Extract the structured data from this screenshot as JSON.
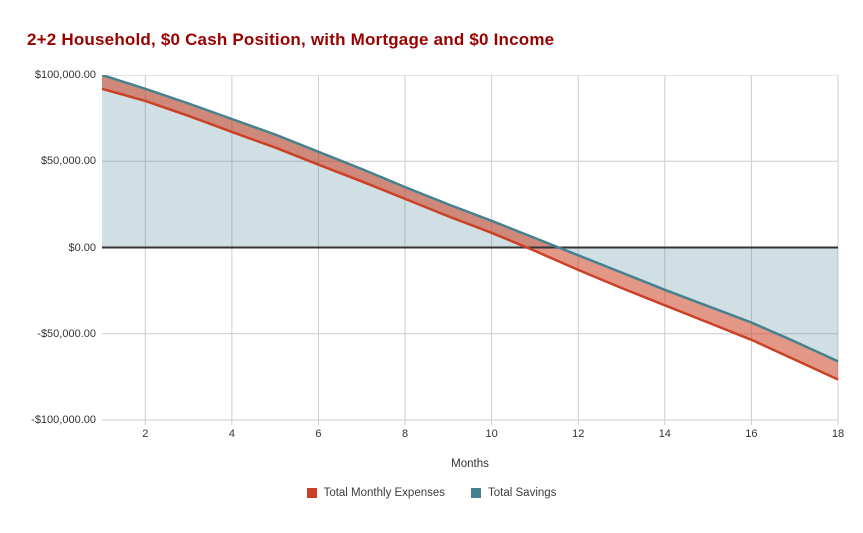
{
  "title": {
    "text": "2+2 Household, $0 Cash Position, with Mortgage and $0 Income",
    "color": "#990000"
  },
  "chart_data": {
    "type": "area",
    "title": "2+2 Household, $0 Cash Position, with Mortgage and $0 Income",
    "xlabel": "Months",
    "ylabel": "",
    "xlim": [
      1,
      18
    ],
    "ylim": [
      -100000,
      100000
    ],
    "grid": true,
    "legend_position": "bottom",
    "baseline": 0,
    "x": [
      1,
      2,
      3,
      4,
      5,
      6,
      7,
      8,
      9,
      10,
      11,
      12,
      13,
      14,
      15,
      16,
      17,
      18
    ],
    "series": [
      {
        "name": "Total Monthly Expenses",
        "color": "#cc4125",
        "fill": "rgba(204,65,37,0.55)",
        "fill_region": "between-this-line-and-savings-line",
        "values": [
          92000,
          85000,
          76300,
          67000,
          57900,
          48000,
          38300,
          28200,
          18000,
          8500,
          -2000,
          -13000,
          -23500,
          -33500,
          -43500,
          -53500,
          -65000,
          -76500
        ]
      },
      {
        "name": "Total Savings",
        "color": "#45818e",
        "fill": "rgba(69,129,142,0.25)",
        "fill_region": "between-this-line-and-zero-baseline",
        "values": [
          100000,
          92000,
          83500,
          74500,
          65500,
          55500,
          45500,
          35000,
          25000,
          15500,
          5500,
          -4500,
          -14500,
          -24500,
          -34000,
          -43500,
          -54500,
          -66000
        ]
      }
    ],
    "y_ticks": [
      {
        "value": 100000,
        "label": "$100,000.00"
      },
      {
        "value": 50000,
        "label": "$50,000.00"
      },
      {
        "value": 0,
        "label": "$0.00"
      },
      {
        "value": -50000,
        "label": "-$50,000.00"
      },
      {
        "value": -100000,
        "label": "-$100,000.00"
      }
    ],
    "x_ticks": [
      {
        "value": 2,
        "label": "2"
      },
      {
        "value": 4,
        "label": "4"
      },
      {
        "value": 6,
        "label": "6"
      },
      {
        "value": 8,
        "label": "8"
      },
      {
        "value": 10,
        "label": "10"
      },
      {
        "value": 12,
        "label": "12"
      },
      {
        "value": 14,
        "label": "14"
      },
      {
        "value": 16,
        "label": "16"
      },
      {
        "value": 18,
        "label": "18"
      }
    ]
  },
  "axes": {
    "x_title": "Months"
  },
  "legend": {
    "items": [
      {
        "label": "Total Monthly Expenses",
        "color": "#cc4125"
      },
      {
        "label": "Total Savings",
        "color": "#45818e"
      }
    ]
  },
  "colors": {
    "grid": "#cccccc",
    "zero_line": "#333333",
    "tick_label": "#333333",
    "background": "#ffffff"
  }
}
